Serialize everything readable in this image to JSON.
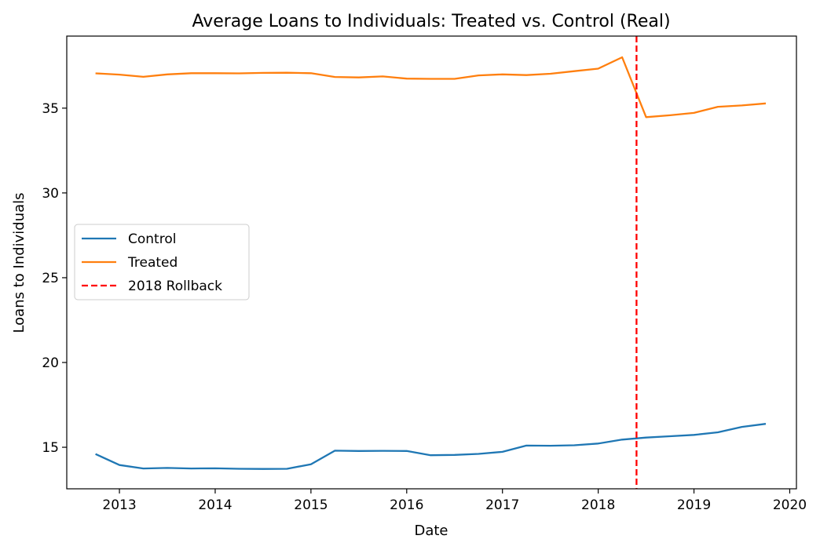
{
  "chart_data": {
    "type": "line",
    "title": "Average Loans to Individuals: Treated vs. Control (Real)",
    "xlabel": "Date",
    "ylabel": "Loans to Individuals",
    "xlim": [
      2012.45,
      2020.07
    ],
    "ylim": [
      12.55,
      39.25
    ],
    "x_ticks": [
      2013,
      2014,
      2015,
      2016,
      2017,
      2018,
      2019,
      2020
    ],
    "x_tick_labels": [
      "2013",
      "2014",
      "2015",
      "2016",
      "2017",
      "2018",
      "2019",
      "2020"
    ],
    "y_ticks": [
      15,
      20,
      25,
      30,
      35
    ],
    "y_tick_labels": [
      "15",
      "20",
      "25",
      "30",
      "35"
    ],
    "x": [
      2012.75,
      2013.0,
      2013.25,
      2013.5,
      2013.75,
      2014.0,
      2014.25,
      2014.5,
      2014.75,
      2015.0,
      2015.25,
      2015.5,
      2015.75,
      2016.0,
      2016.25,
      2016.5,
      2016.75,
      2017.0,
      2017.25,
      2017.5,
      2017.75,
      2018.0,
      2018.25,
      2018.5,
      2018.75,
      2019.0,
      2019.25,
      2019.5,
      2019.75
    ],
    "series": [
      {
        "name": "Control",
        "color": "#1f77b4",
        "values": [
          14.6,
          13.95,
          13.75,
          13.78,
          13.75,
          13.76,
          13.73,
          13.72,
          13.73,
          14.0,
          14.8,
          14.78,
          14.79,
          14.78,
          14.53,
          14.55,
          14.61,
          14.73,
          15.1,
          15.09,
          15.12,
          15.22,
          15.45,
          15.57,
          15.65,
          15.73,
          15.88,
          16.2,
          16.38
        ]
      },
      {
        "name": "Treated",
        "color": "#ff7f0e",
        "values": [
          37.05,
          36.98,
          36.85,
          36.99,
          37.06,
          37.06,
          37.05,
          37.08,
          37.09,
          37.06,
          36.84,
          36.81,
          36.87,
          36.74,
          36.73,
          36.73,
          36.93,
          36.99,
          36.95,
          37.03,
          37.18,
          37.33,
          38.0,
          34.47,
          34.58,
          34.72,
          35.08,
          35.16,
          35.28
        ]
      }
    ],
    "annotations": [
      {
        "type": "vline",
        "x": 2018.4,
        "label": "2018 Rollback",
        "color": "#ff0000",
        "style": "dashed"
      }
    ],
    "legend": {
      "placement": "center-left",
      "entries": [
        "Control",
        "Treated",
        "2018 Rollback"
      ]
    },
    "grid": false
  }
}
